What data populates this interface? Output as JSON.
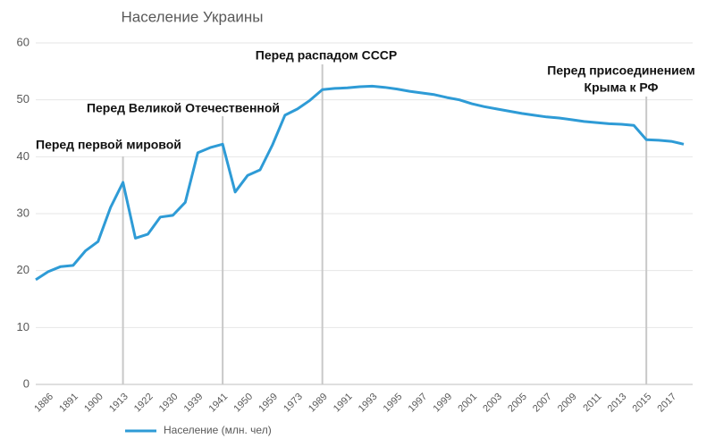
{
  "chart_data": {
    "type": "line",
    "title": "Население Украины",
    "categories": [
      null,
      "1886",
      null,
      "1891",
      null,
      "1900",
      null,
      "1913",
      null,
      "1922",
      null,
      "1930",
      null,
      "1939",
      null,
      "1941",
      null,
      "1950",
      null,
      "1959",
      null,
      "1973",
      null,
      "1989",
      null,
      "1991",
      null,
      "1993",
      null,
      "1995",
      null,
      "1997",
      null,
      "1999",
      null,
      "2001",
      null,
      "2003",
      null,
      "2005",
      null,
      "2007",
      null,
      "2009",
      null,
      "2011",
      null,
      "2013",
      null,
      "2015",
      null,
      "2017",
      null
    ],
    "series": [
      {
        "name": "Население (млн. чел)",
        "color": "#2e9bd6",
        "values": [
          18.4,
          19.8,
          20.7,
          20.9,
          23.5,
          25.1,
          31.1,
          35.5,
          25.7,
          26.4,
          29.4,
          29.7,
          32.0,
          40.7,
          41.6,
          42.2,
          33.8,
          36.7,
          37.7,
          42.1,
          47.3,
          48.4,
          49.9,
          51.8,
          52.0,
          52.1,
          52.3,
          52.4,
          52.2,
          51.9,
          51.5,
          51.2,
          50.9,
          50.4,
          50.0,
          49.3,
          48.8,
          48.4,
          48.0,
          47.6,
          47.3,
          47.0,
          46.8,
          46.5,
          46.2,
          46.0,
          45.8,
          45.7,
          45.5,
          43.0,
          42.9,
          42.7,
          42.2
        ]
      }
    ],
    "ylim": [
      0,
      60
    ],
    "yticks": [
      0,
      10,
      20,
      30,
      40,
      50,
      60
    ],
    "grid": true,
    "legend": "bottom",
    "annotations": [
      {
        "category": "1913",
        "lines": [
          "Перед первой мировой"
        ]
      },
      {
        "category": "1941",
        "lines": [
          "Перед Великой Отечественной"
        ]
      },
      {
        "category": "1989",
        "lines": [
          "Перед распадом СССР"
        ]
      },
      {
        "category": "2015",
        "lines": [
          "Перед присоединением",
          "Крыма к РФ"
        ]
      }
    ]
  }
}
